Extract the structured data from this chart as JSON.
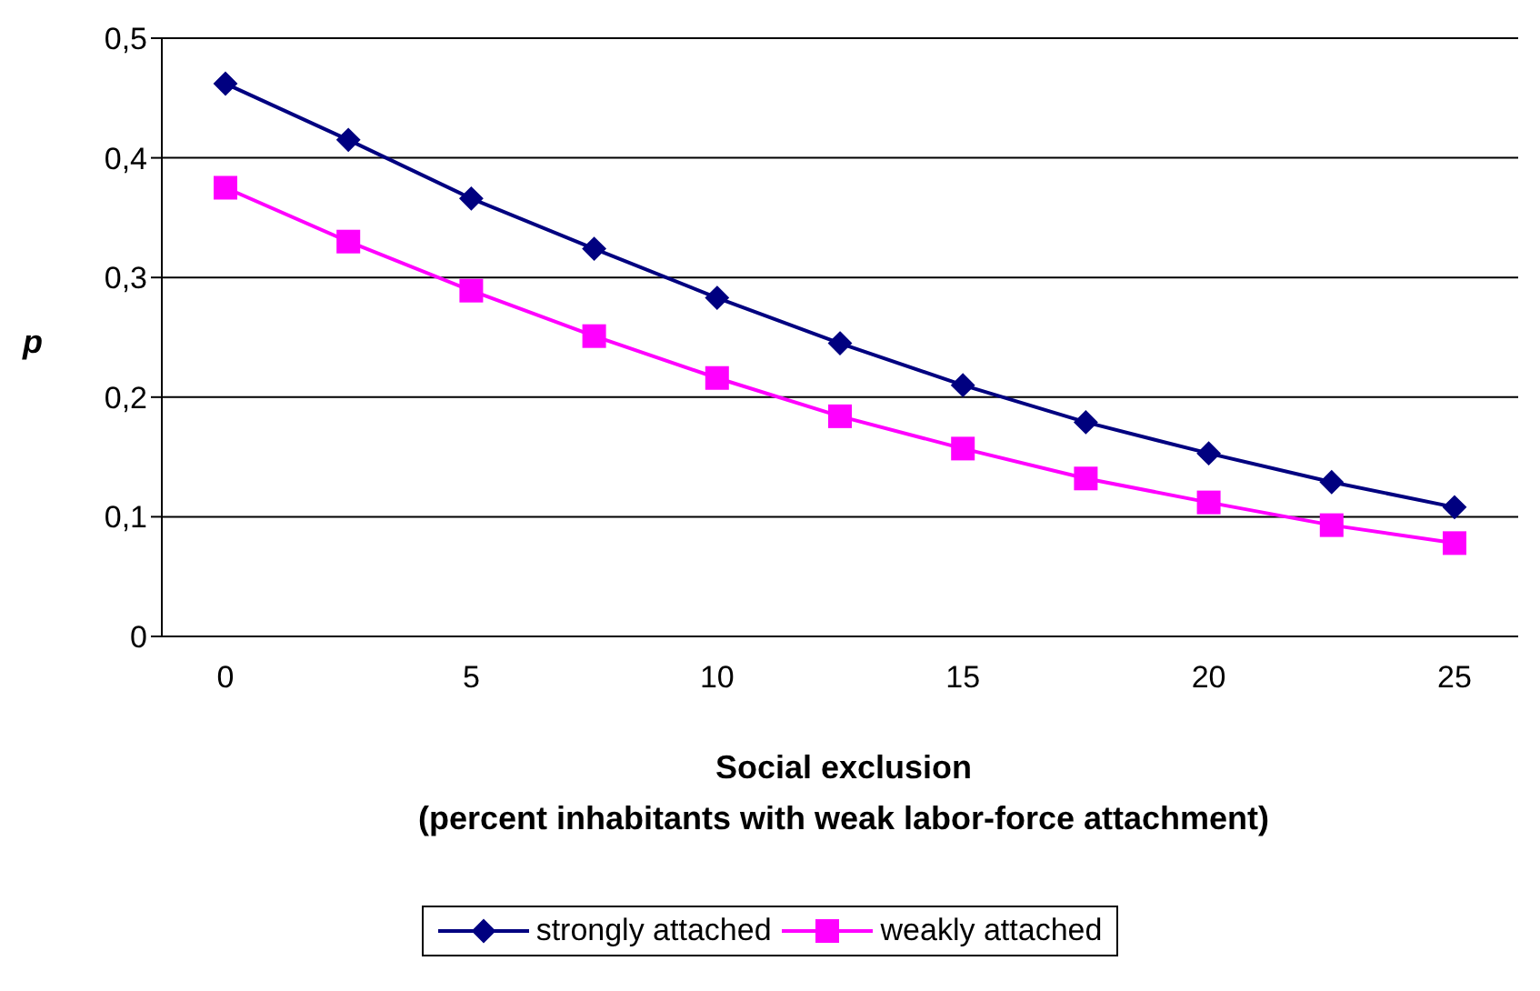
{
  "chart_data": {
    "type": "line",
    "xlabel": "Social exclusion\n(percent inhabitants with weak labor-force attachment)",
    "ylabel": "p",
    "categories": [
      "0",
      null,
      "5",
      null,
      "10",
      null,
      "15",
      null,
      "20",
      null,
      "25"
    ],
    "ylim": [
      0,
      0.5
    ],
    "yticks": [
      0,
      {
        "value": 0.1,
        "label": "0,1"
      },
      {
        "value": 0.2,
        "label": "0,2"
      },
      {
        "value": 0.3,
        "label": "0,3"
      },
      {
        "value": 0.4,
        "label": "0,4"
      },
      {
        "value": 0.5,
        "label": "0,5"
      }
    ],
    "grid": "y",
    "legend": "bottom",
    "line_style": "solid",
    "series": [
      {
        "name": "strongly attached",
        "color": "#000080",
        "marker": "diamond",
        "values": [
          0.462,
          0.415,
          0.366,
          0.324,
          0.283,
          0.245,
          0.21,
          0.179,
          0.153,
          0.129,
          0.108
        ]
      },
      {
        "name": "weakly attached",
        "color": "#ff00ff",
        "marker": "square",
        "values": [
          0.375,
          0.33,
          0.289,
          0.251,
          0.216,
          0.184,
          0.157,
          0.132,
          0.112,
          0.093,
          0.078
        ]
      }
    ]
  }
}
